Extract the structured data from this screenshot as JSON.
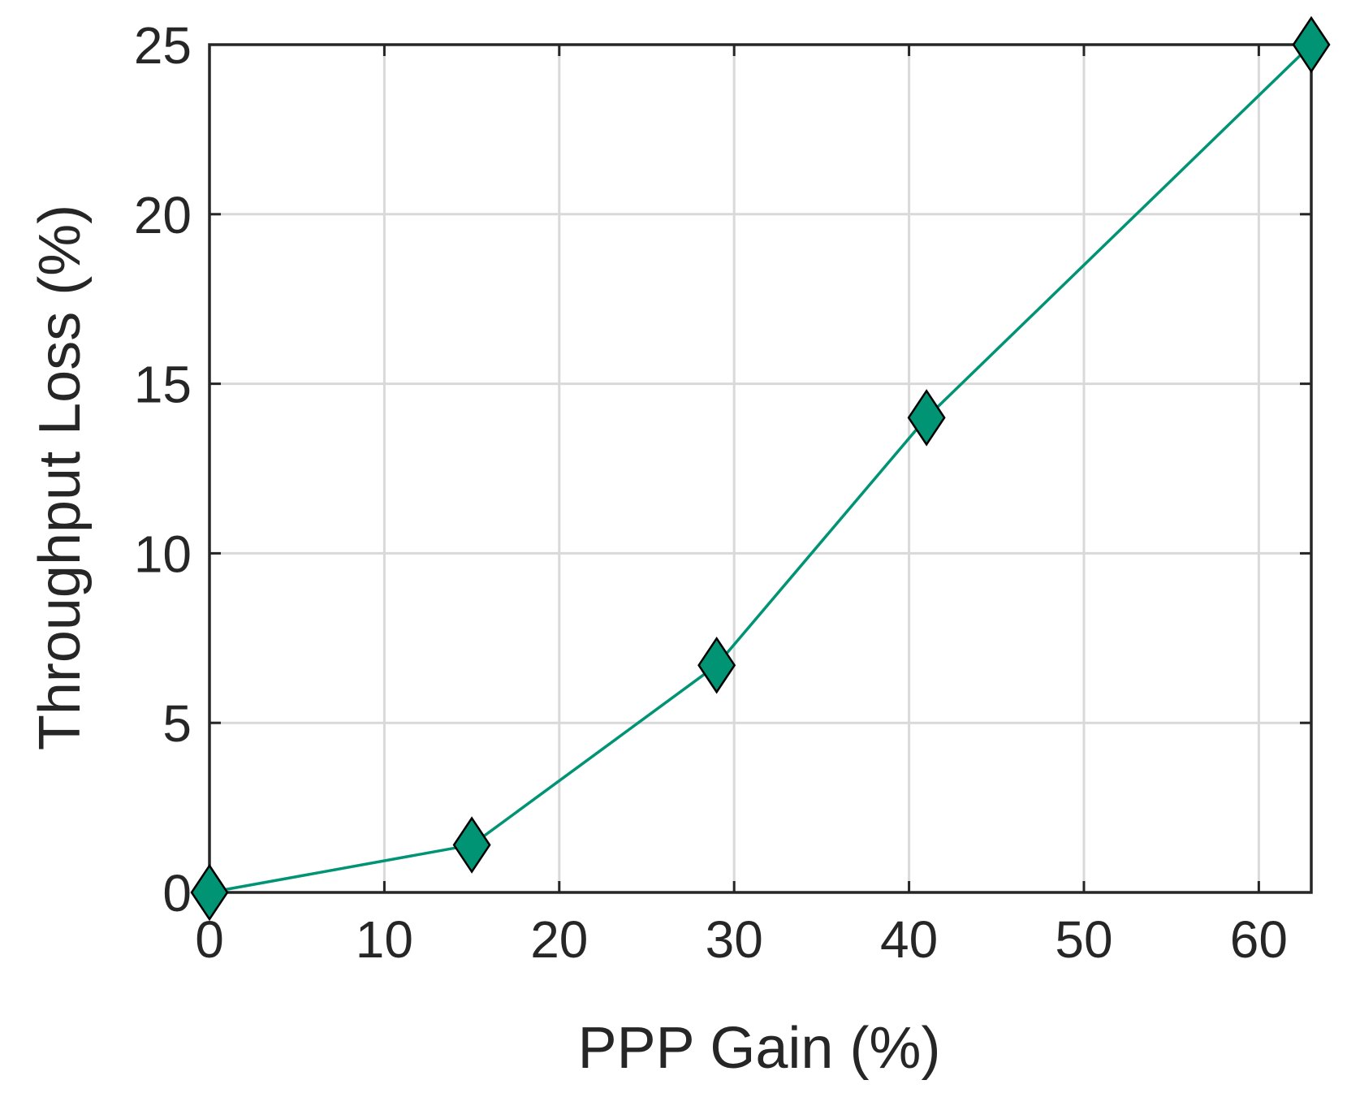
{
  "chart_data": {
    "type": "line",
    "xlabel": "PPP Gain (%)",
    "ylabel": "Throughput Loss (%)",
    "xlim": [
      0,
      63
    ],
    "ylim": [
      0,
      25
    ],
    "xticks": [
      0,
      10,
      20,
      30,
      40,
      50,
      60
    ],
    "yticks": [
      0,
      5,
      10,
      15,
      20,
      25
    ],
    "grid": true,
    "series": [
      {
        "marker": "diamond",
        "color": "#009474",
        "x": [
          0,
          15,
          29,
          41,
          63
        ],
        "y": [
          0,
          1.4,
          6.7,
          14,
          25
        ]
      }
    ]
  }
}
